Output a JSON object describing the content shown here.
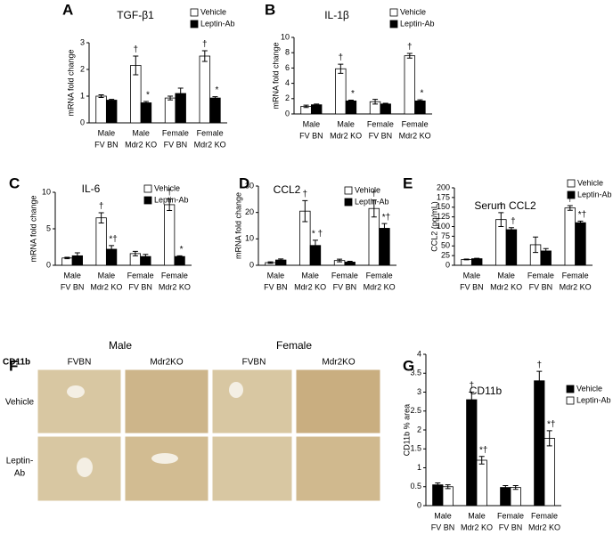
{
  "chart_data": [
    {
      "type": "bar",
      "panel": "A",
      "title": "TGF-β1",
      "ylabel": "mRNA fold change",
      "categories": [
        [
          "Male",
          "FV BN"
        ],
        [
          "Male",
          "Mdr2 KO"
        ],
        [
          "Female",
          "FV BN"
        ],
        [
          "Female",
          "Mdr2 KO"
        ]
      ],
      "ylim": [
        0,
        3
      ],
      "yticks": [
        0,
        1,
        2,
        3
      ],
      "series": [
        {
          "name": "Vehicle",
          "color": "#ffffff",
          "values": [
            1.0,
            2.15,
            0.93,
            2.5
          ],
          "errors": [
            0.05,
            0.35,
            0.07,
            0.2
          ],
          "annotations": [
            null,
            "†",
            null,
            "†"
          ]
        },
        {
          "name": "Leptin-Ab",
          "color": "#000000",
          "values": [
            0.85,
            0.75,
            1.1,
            0.93
          ],
          "errors": [
            0.03,
            0.05,
            0.2,
            0.05
          ],
          "annotations": [
            null,
            "*",
            null,
            "*"
          ]
        }
      ]
    },
    {
      "type": "bar",
      "panel": "B",
      "title": "IL-1β",
      "ylabel": "mRNA fold change",
      "categories": [
        [
          "Male",
          "FV BN"
        ],
        [
          "Male",
          "Mdr2 KO"
        ],
        [
          "Female",
          "FV BN"
        ],
        [
          "Female",
          "Mdr2 KO"
        ]
      ],
      "ylim": [
        0,
        10
      ],
      "yticks": [
        0,
        2,
        4,
        6,
        8,
        10
      ],
      "series": [
        {
          "name": "Vehicle",
          "color": "#ffffff",
          "values": [
            1.0,
            5.9,
            1.6,
            7.6
          ],
          "errors": [
            0.15,
            0.6,
            0.3,
            0.3
          ],
          "annotations": [
            null,
            "†",
            null,
            "†"
          ]
        },
        {
          "name": "Leptin-Ab",
          "color": "#000000",
          "values": [
            1.2,
            1.7,
            1.3,
            1.7
          ],
          "errors": [
            0.1,
            0.1,
            0.1,
            0.15
          ],
          "annotations": [
            null,
            "*",
            null,
            "*"
          ]
        }
      ]
    },
    {
      "type": "bar",
      "panel": "C",
      "title": "IL-6",
      "ylabel": "mRNA fold change",
      "categories": [
        [
          "Male",
          "FV BN"
        ],
        [
          "Male",
          "Mdr2 KO"
        ],
        [
          "Female",
          "FV BN"
        ],
        [
          "Female",
          "Mdr2 KO"
        ]
      ],
      "ylim": [
        0,
        10
      ],
      "yticks": [
        0,
        5,
        10
      ],
      "series": [
        {
          "name": "Vehicle",
          "color": "#ffffff",
          "values": [
            1.0,
            6.5,
            1.6,
            8.3
          ],
          "errors": [
            0.1,
            0.7,
            0.3,
            0.8
          ],
          "annotations": [
            null,
            "†",
            null,
            "†"
          ]
        },
        {
          "name": "Leptin-Ab",
          "color": "#000000",
          "values": [
            1.3,
            2.2,
            1.2,
            1.2
          ],
          "errors": [
            0.4,
            0.5,
            0.3,
            0.1
          ],
          "annotations": [
            null,
            "*†",
            null,
            "*"
          ]
        }
      ]
    },
    {
      "type": "bar",
      "panel": "D",
      "title": "CCL2",
      "ylabel": "mRNA fold change",
      "categories": [
        [
          "Male",
          "FV BN"
        ],
        [
          "Male",
          "Mdr2 KO"
        ],
        [
          "Female",
          "FV BN"
        ],
        [
          "Female",
          "Mdr2 KO"
        ]
      ],
      "ylim": [
        0,
        30
      ],
      "yticks": [
        0,
        10,
        20,
        30
      ],
      "series": [
        {
          "name": "Vehicle",
          "color": "#ffffff",
          "values": [
            1.0,
            20.5,
            1.8,
            21.5
          ],
          "errors": [
            0.3,
            4,
            0.5,
            3.2
          ],
          "annotations": [
            null,
            "†",
            null,
            "†"
          ]
        },
        {
          "name": "Leptin-Ab",
          "color": "#000000",
          "values": [
            2.0,
            7.5,
            1.2,
            14
          ],
          "errors": [
            0.4,
            2,
            0.3,
            1.8
          ],
          "annotations": [
            null,
            "* †",
            null,
            "*†"
          ]
        }
      ]
    },
    {
      "type": "bar",
      "panel": "E",
      "title": "Serum CCL2",
      "ylabel": "CCL2 (pg/mL)",
      "categories": [
        [
          "Male",
          "FV BN"
        ],
        [
          "Male",
          "Mdr2 KO"
        ],
        [
          "Female",
          "FV BN"
        ],
        [
          "Female",
          "Mdr2 KO"
        ]
      ],
      "ylim": [
        0,
        200
      ],
      "yticks": [
        0,
        25,
        50,
        75,
        100,
        125,
        150,
        175,
        200
      ],
      "series": [
        {
          "name": "Vehicle",
          "color": "#ffffff",
          "values": [
            15,
            118,
            53,
            148
          ],
          "errors": [
            1,
            18,
            20,
            6
          ],
          "annotations": [
            null,
            "†",
            null,
            "†"
          ]
        },
        {
          "name": "Leptin-Ab",
          "color": "#000000",
          "values": [
            17,
            92,
            37,
            110
          ],
          "errors": [
            1,
            5,
            6,
            4
          ],
          "annotations": [
            null,
            "†",
            null,
            "*†"
          ]
        }
      ]
    },
    {
      "type": "bar",
      "panel": "G",
      "title": "CD11b",
      "ylabel": "CD11b % area",
      "categories": [
        [
          "Male",
          "FV BN"
        ],
        [
          "Male",
          "Mdr2 KO"
        ],
        [
          "Female",
          "FV BN"
        ],
        [
          "Female",
          "Mdr2 KO"
        ]
      ],
      "ylim": [
        0,
        4
      ],
      "yticks": [
        0,
        0.5,
        1,
        1.5,
        2,
        2.5,
        3,
        3.5,
        4
      ],
      "series": [
        {
          "name": "Vehicle",
          "color": "#000000",
          "values": [
            0.55,
            2.8,
            0.48,
            3.3
          ],
          "errors": [
            0.05,
            0.2,
            0.05,
            0.25
          ],
          "annotations": [
            null,
            "†",
            null,
            "†"
          ]
        },
        {
          "name": "Leptin-Ab",
          "color": "#ffffff",
          "values": [
            0.5,
            1.2,
            0.48,
            1.78
          ],
          "errors": [
            0.05,
            0.1,
            0.05,
            0.2
          ],
          "annotations": [
            null,
            "*†",
            null,
            "*†"
          ]
        }
      ]
    }
  ],
  "panel_f": {
    "panel": "F",
    "stain": "CD11b",
    "groups": [
      "Male",
      "Female"
    ],
    "columns": [
      "FVBN",
      "Mdr2KO",
      "FVBN",
      "Mdr2KO"
    ],
    "rows": [
      [
        "Vehicle"
      ],
      [
        "Leptin-",
        "Ab"
      ]
    ]
  }
}
